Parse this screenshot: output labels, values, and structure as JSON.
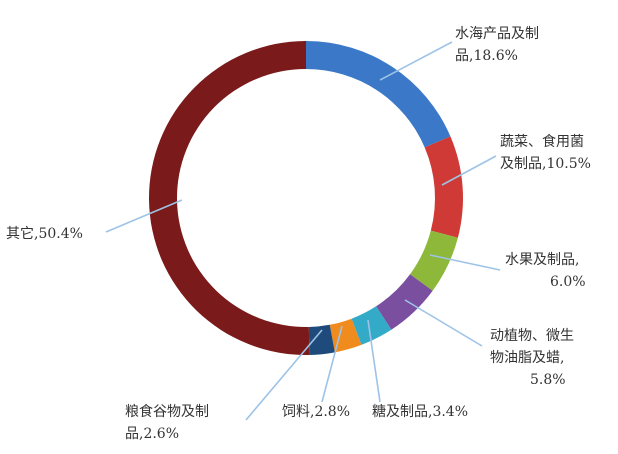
{
  "chart_data": {
    "type": "pie",
    "donut": true,
    "unit": "%",
    "slices": [
      {
        "label": "水海产品及制品",
        "value": 18.6,
        "color": "#3b78c8",
        "label_lines": [
          "水海产品及制",
          "品,18.6%"
        ]
      },
      {
        "label": "蔬菜、食用菌及制品",
        "value": 10.5,
        "color": "#cf3a36",
        "label_lines": [
          "蔬菜、食用菌",
          "及制品,10.5%"
        ]
      },
      {
        "label": "水果及制品",
        "value": 6.0,
        "color": "#8db83a",
        "label_lines": [
          "水果及制品,",
          "6.0%"
        ]
      },
      {
        "label": "动植物、微生物油脂及蜡",
        "value": 5.8,
        "color": "#7a4f9f",
        "label_lines": [
          "动植物、微生",
          "物油脂及蜡,",
          "5.8%"
        ]
      },
      {
        "label": "糖及制品",
        "value": 3.4,
        "color": "#33abc8",
        "label_lines": [
          "糖及制品,3.4%"
        ]
      },
      {
        "label": "饲料",
        "value": 2.8,
        "color": "#f08b1e",
        "label_lines": [
          "饲料,2.8%"
        ]
      },
      {
        "label": "粮食谷物及制品",
        "value": 2.6,
        "color": "#1f4a7c",
        "label_lines": [
          "粮食谷物及制",
          "品,2.6%"
        ]
      },
      {
        "label": "其它",
        "value": 50.4,
        "color": "#7a1a1a",
        "label_lines": [
          "其它,50.4%"
        ]
      }
    ],
    "leader_line_color": "#9dc3e6",
    "legend": "none"
  }
}
